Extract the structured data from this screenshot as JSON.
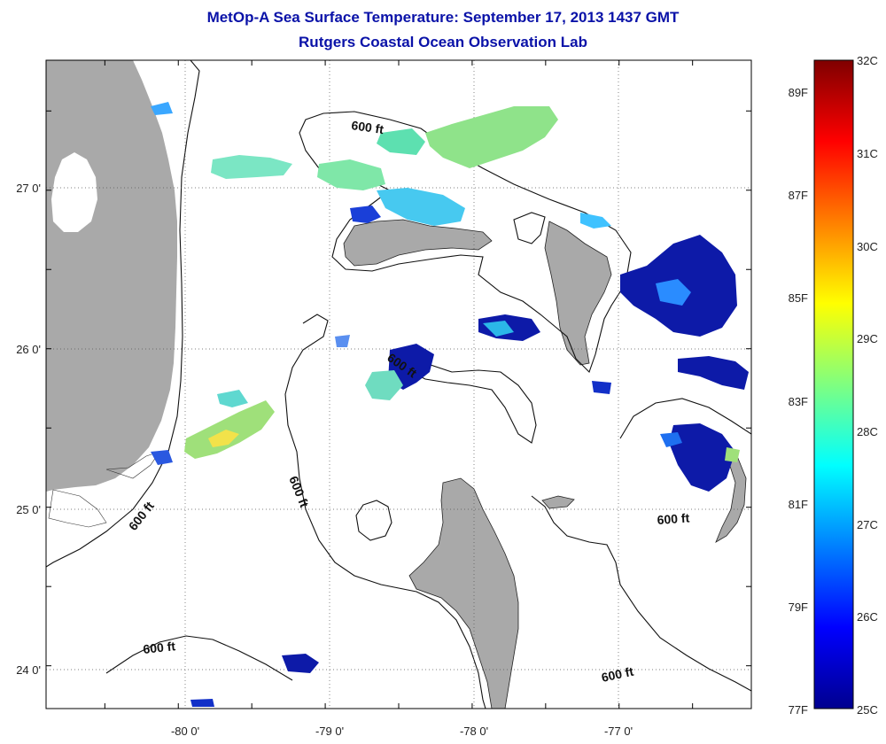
{
  "title": "MetOp-A Sea Surface Temperature:  September 17, 2013 1437 GMT",
  "subtitle": "Rutgers Coastal Ocean Observation Lab",
  "map": {
    "lon_range": [
      -80.9,
      -76.1
    ],
    "lat_range": [
      23.73,
      27.82
    ],
    "lon_ticks": [
      {
        "value": -80,
        "label": "-80 0'"
      },
      {
        "value": -79,
        "label": "-79 0'"
      },
      {
        "value": -78,
        "label": "-78 0'"
      },
      {
        "value": -77,
        "label": "-77 0'"
      }
    ],
    "lat_ticks": [
      {
        "value": 27,
        "label": "27 0'"
      },
      {
        "value": 26,
        "label": "26 0'"
      },
      {
        "value": 25,
        "label": "25 0'"
      },
      {
        "value": 24,
        "label": "24 0'"
      }
    ],
    "grid": true,
    "land_color": "#a9a9a9",
    "contour_label": "600 ft"
  },
  "colorbar": {
    "celsius_labels": [
      "32C",
      "31C",
      "30C",
      "29C",
      "28C",
      "27C",
      "26C",
      "25C"
    ],
    "fahrenheit_labels": [
      "89F",
      "87F",
      "85F",
      "83F",
      "81F",
      "79F",
      "77F"
    ],
    "colormap": [
      "#7f0000",
      "#ff0000",
      "#ffff00",
      "#00ffff",
      "#0000ff",
      "#00008f"
    ]
  }
}
